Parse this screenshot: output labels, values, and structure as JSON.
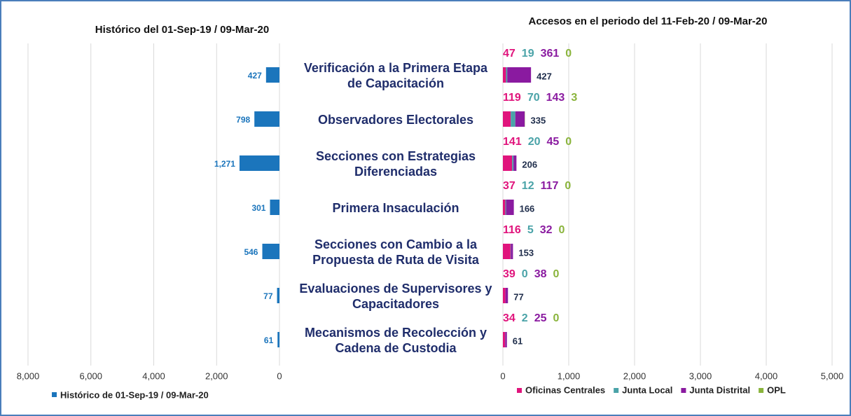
{
  "chart_data": [
    {
      "type": "hbar",
      "title": "Histórico del 01-Sep-19 / 09-Mar-20",
      "categories": [
        [
          "Verificación a la Primera Etapa",
          "de Capacitación"
        ],
        [
          "Observadores Electorales"
        ],
        [
          "Secciones con Estrategias",
          "Diferenciadas"
        ],
        [
          "Primera Insaculación"
        ],
        [
          "Secciones con Cambio a la",
          "Propuesta de Ruta de Visita"
        ],
        [
          "Evaluaciones de Supervisores y",
          "Capacitadores"
        ],
        [
          "Mecanismos de Recolección y",
          "Cadena de Custodia"
        ]
      ],
      "series": [
        {
          "name": "Histórico de 01-Sep-19 / 09-Mar-20",
          "color": "#1b75bc",
          "values": [
            427,
            798,
            1271,
            301,
            546,
            77,
            61
          ],
          "value_labels": [
            "427",
            "798",
            "1,271",
            "301",
            "546",
            "77",
            "61"
          ]
        }
      ],
      "xlim": [
        0,
        8000
      ],
      "reversed": true,
      "grid": true,
      "xticks": [
        0,
        {
          "value": 2000,
          "label": "2,000"
        },
        {
          "value": 4000,
          "label": "4,000"
        },
        {
          "value": 6000,
          "label": "6,000"
        },
        {
          "value": 8000,
          "label": "8,000"
        }
      ]
    },
    {
      "type": "stacked_hbar",
      "title": "Accesos en el periodo del 11-Feb-20 / 09-Mar-20",
      "series": [
        {
          "name": "Oficinas Centrales",
          "color": "#e0147c",
          "values": [
            47,
            119,
            141,
            37,
            116,
            39,
            34
          ]
        },
        {
          "name": "Junta Local",
          "color": "#4aa3a8",
          "values": [
            19,
            70,
            20,
            12,
            5,
            0,
            2
          ]
        },
        {
          "name": "Junta Distrital",
          "color": "#8a1aa0",
          "values": [
            361,
            143,
            45,
            117,
            32,
            38,
            25
          ]
        },
        {
          "name": "OPL",
          "color": "#8ab43c",
          "values": [
            0,
            3,
            0,
            0,
            0,
            0,
            0
          ]
        }
      ],
      "totals": [
        427,
        335,
        206,
        166,
        153,
        77,
        61
      ],
      "xlim": [
        0,
        5000
      ],
      "grid": true,
      "xticks": [
        0,
        {
          "value": 1000,
          "label": "1,000"
        },
        {
          "value": 2000,
          "label": "2,000"
        },
        {
          "value": 3000,
          "label": "3,000"
        },
        {
          "value": 4000,
          "label": "4,000"
        },
        {
          "value": 5000,
          "label": "5,000"
        }
      ]
    }
  ]
}
